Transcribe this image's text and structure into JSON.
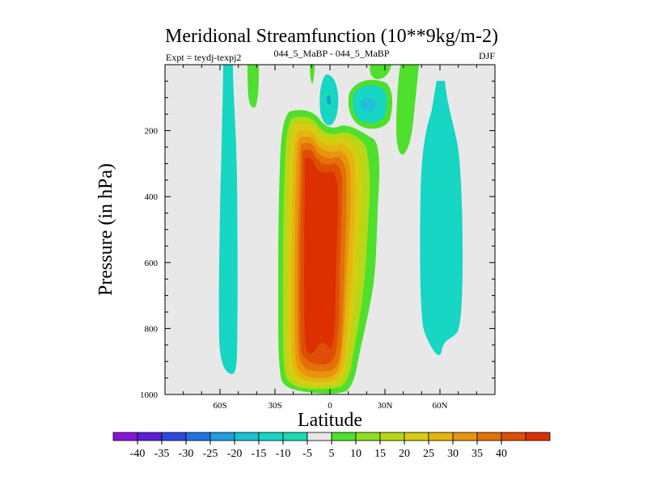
{
  "chart_data": {
    "type": "contour",
    "title": "Meridional Streamfunction (10**9kg/m-2)",
    "subtitle_left": "Expt = teydj-texpj2",
    "subtitle_center": "044_5_MaBP - 044_5_MaBP",
    "subtitle_right": "DJF",
    "xlabel": "Latitude",
    "ylabel": "Pressure (in hPa)",
    "x_range": [
      -90,
      90
    ],
    "y_range": [
      0,
      1000
    ],
    "y_inverted": true,
    "x_ticks": [
      {
        "value": -60,
        "label": "60S"
      },
      {
        "value": -30,
        "label": "30S"
      },
      {
        "value": 0,
        "label": "0"
      },
      {
        "value": 30,
        "label": "30N"
      },
      {
        "value": 60,
        "label": "60N"
      }
    ],
    "y_ticks": [
      {
        "value": 200,
        "label": "200"
      },
      {
        "value": 400,
        "label": "400"
      },
      {
        "value": 600,
        "label": "600"
      },
      {
        "value": 800,
        "label": "800"
      },
      {
        "value": 1000,
        "label": "1000"
      }
    ],
    "background_color": "#e8e8e8",
    "colorbar": {
      "colors": [
        "#8a15d9",
        "#5a1fd6",
        "#2a48e0",
        "#2172e0",
        "#1f9de0",
        "#18c0d8",
        "#17d6c4",
        "#17dcb2",
        "#e8e8e8",
        "#4ee02c",
        "#8de01c",
        "#b6d816",
        "#d8cc12",
        "#e6b40e",
        "#e8940c",
        "#e4700a",
        "#e04e06",
        "#dc3000"
      ],
      "labels": [
        "-40",
        "-35",
        "-30",
        "-25",
        "-20",
        "-15",
        "-10",
        "-5",
        "5",
        "10",
        "15",
        "20",
        "25",
        "30",
        "35",
        "40"
      ]
    },
    "regions": [
      {
        "name": "sh-high-lat-cell",
        "level": -5,
        "lat": [
          -63,
          -57
        ],
        "p": [
          0,
          930
        ]
      },
      {
        "name": "nh-high-lat-cell",
        "level": -5,
        "lat": [
          50,
          75
        ],
        "p": [
          50,
          860
        ]
      },
      {
        "name": "tropical-hadley-outer",
        "level": 5,
        "lat": [
          -25,
          28
        ],
        "p": [
          140,
          980
        ]
      },
      {
        "name": "tropical-hadley-core",
        "level": 40,
        "lat": [
          -18,
          10
        ],
        "p": [
          190,
          960
        ],
        "max": 40
      },
      {
        "name": "upper-equatorial-cell",
        "level": -10,
        "lat": [
          -3,
          4
        ],
        "p": [
          40,
          150
        ]
      },
      {
        "name": "nh-upper-cell-a",
        "level": 10,
        "lat": [
          11,
          30
        ],
        "p": [
          0,
          160
        ]
      },
      {
        "name": "nh-upper-cell-b",
        "level": 10,
        "lat": [
          37,
          48
        ],
        "p": [
          0,
          220
        ]
      },
      {
        "name": "sh-upper-cell",
        "level": 10,
        "lat": [
          -43,
          -38
        ],
        "p": [
          0,
          110
        ]
      },
      {
        "name": "equatorial-top",
        "level": 5,
        "lat": [
          -8,
          -6
        ],
        "p": [
          0,
          40
        ]
      }
    ]
  }
}
